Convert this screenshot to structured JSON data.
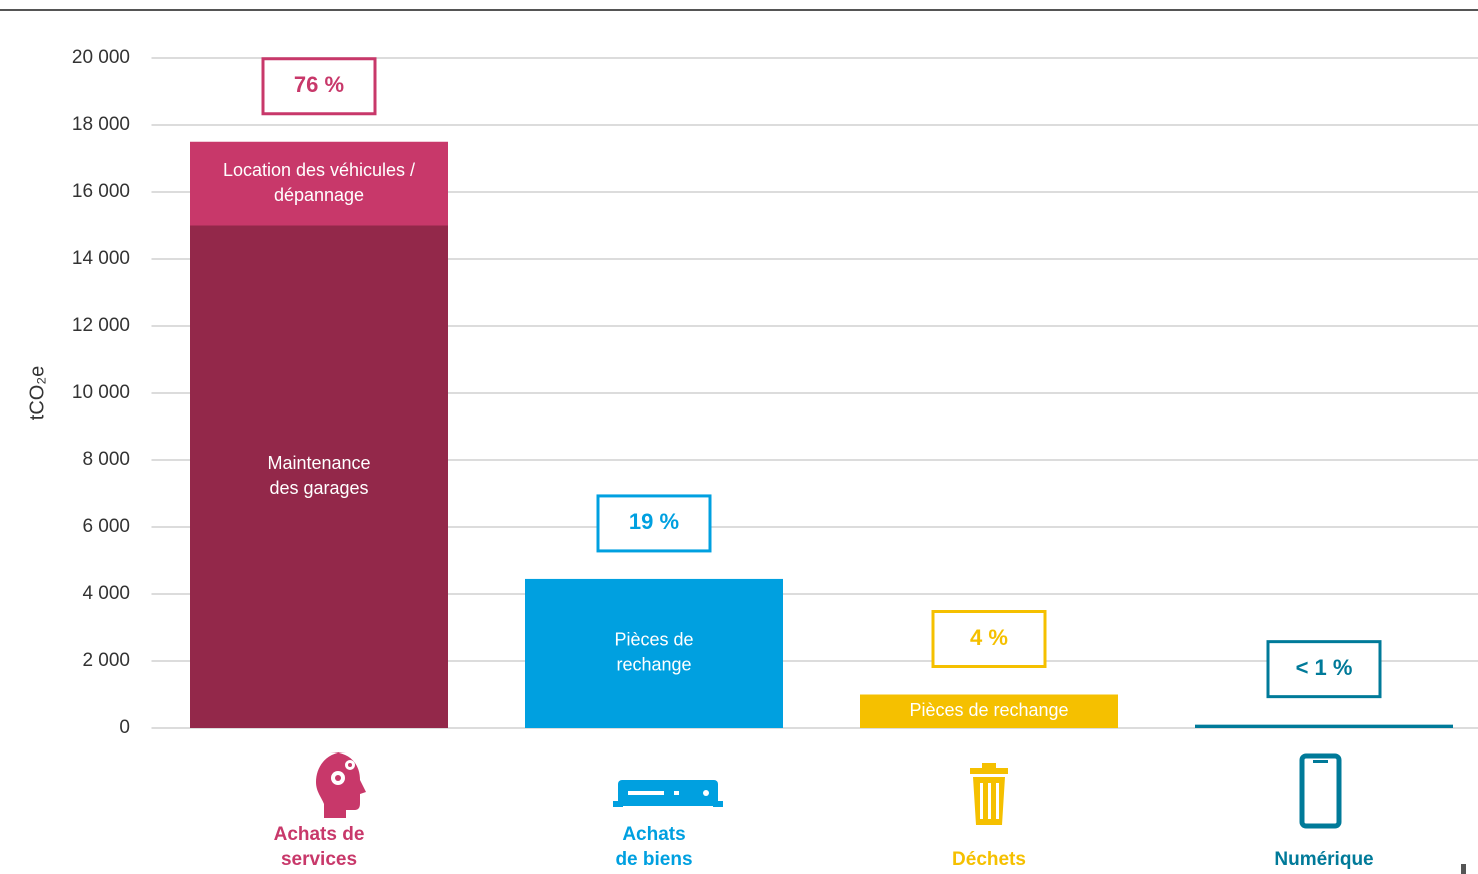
{
  "chart_data": {
    "type": "stacked_bar",
    "y_label": "tCO₂e",
    "ylim": [
      0,
      20000
    ],
    "yticks": [
      0,
      {
        "value": 2000,
        "label": "2 000"
      },
      {
        "value": 4000,
        "label": "4 000"
      },
      {
        "value": 6000,
        "label": "6 000"
      },
      {
        "value": 8000,
        "label": "8 000"
      },
      {
        "value": 10000,
        "label": "10 000"
      },
      {
        "value": 12000,
        "label": "12 000"
      },
      {
        "value": 14000,
        "label": "14 000"
      },
      {
        "value": 16000,
        "label": "16 000"
      },
      {
        "value": 18000,
        "label": "18 000"
      },
      {
        "value": 20000,
        "label": "20 000"
      }
    ],
    "grid": true,
    "bars": [
      {
        "category": [
          "Achats de",
          "services"
        ],
        "color": "#c8386a",
        "share_label": "76 %",
        "segments": [
          {
            "name": [
              "Maintenance",
              "des garages"
            ],
            "value": 15000,
            "color": "#93284a"
          },
          {
            "name": [
              "Location des véhicules /",
              "dépannage"
            ],
            "value": 2500,
            "color": "#c8386a"
          }
        ]
      },
      {
        "category": [
          "Achats",
          "de biens"
        ],
        "color": "#00a0e0",
        "share_label": "19 %",
        "segments": [
          {
            "name": [
              "Pièces de",
              "rechange"
            ],
            "value": 4450,
            "color": "#00a0e0"
          }
        ]
      },
      {
        "category": [
          "Déchets"
        ],
        "color": "#f5c000",
        "share_label": "4 %",
        "segments": [
          {
            "name": [
              "Pièces de rechange"
            ],
            "value": 1000,
            "color": "#f5c000"
          }
        ]
      },
      {
        "category": [
          "Numérique"
        ],
        "color": "#007a99",
        "share_label": "< 1 %",
        "segments": [
          {
            "value": 100,
            "color": "#007a99"
          }
        ]
      }
    ]
  }
}
